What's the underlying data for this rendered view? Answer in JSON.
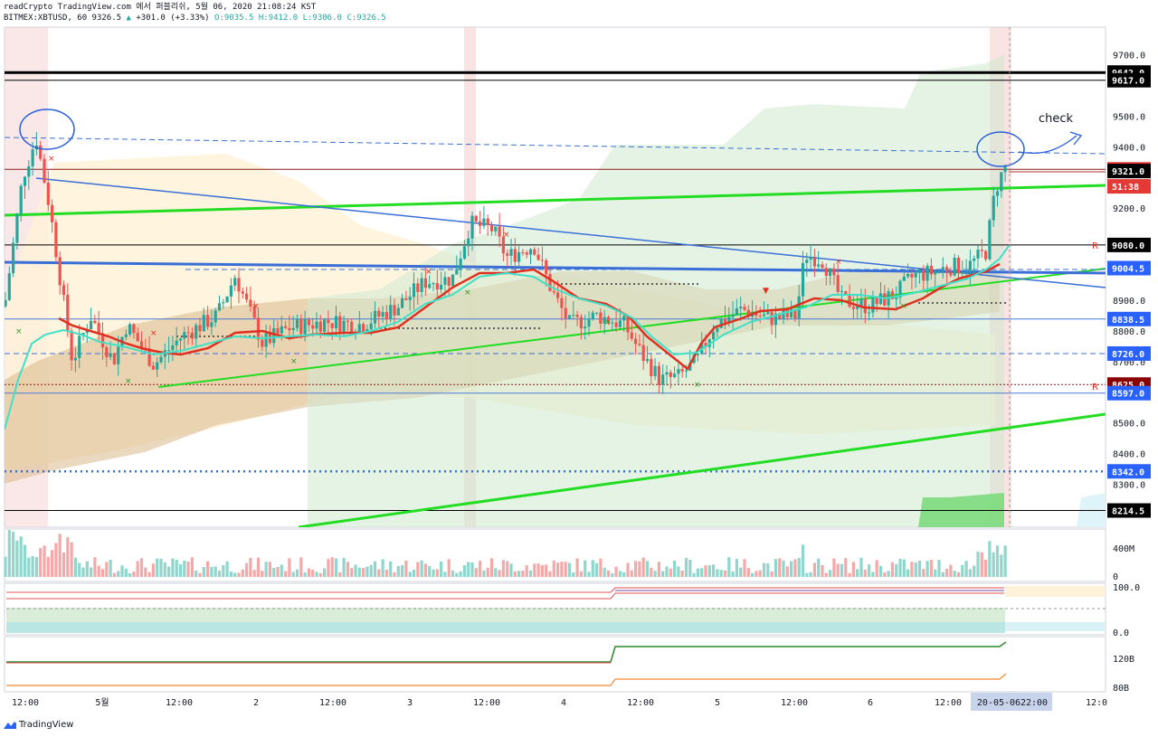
{
  "header": {
    "line1": "readCrypto TradingView.com 에서 퍼블리쉬, 5월 06, 2020 21:08:24 KST",
    "symbol": "BITMEX:XBTUSD, 60",
    "last": "9326.5",
    "change": "+301.0 (+3.33%)",
    "open": "O:9035.5",
    "high": "H:9412.0",
    "low": "L:9306.0",
    "close": "C:9326.5"
  },
  "annotation": "check",
  "branding": "TradingView",
  "colors": {
    "up": "#26a69a",
    "down": "#ef5350",
    "green_line": "#22dd22",
    "blue_line": "#3a6fd8",
    "red_ma": "#e03020",
    "cyan_ma": "#40e0c8"
  },
  "chart_data": {
    "type": "candlestick",
    "symbol": "BITMEX:XBTUSD",
    "interval": "60",
    "ylim": [
      8160,
      9790
    ],
    "y_ticks": [
      "9700.0",
      "9500.0",
      "9400.0",
      "9200.0",
      "8900.0",
      "8800.0",
      "8700.0",
      "8500.0",
      "8400.0",
      "8300.0"
    ],
    "x_ticks": [
      "12:00",
      "5월",
      "12:00",
      "2",
      "12:00",
      "3",
      "12:00",
      "4",
      "12:00",
      "5",
      "12:00",
      "6",
      "12:00",
      "20-05-06",
      "22:00",
      "12:0"
    ],
    "price_labels": [
      {
        "value": 9642.0,
        "text": "9642.0",
        "style": "black"
      },
      {
        "value": 9617.0,
        "text": "9617.0",
        "style": "black"
      },
      {
        "value": 9326.5,
        "text": "9326.5",
        "style": "red"
      },
      {
        "value": 9271.0,
        "text": "51:38",
        "style": "red"
      },
      {
        "value": 9321.0,
        "text": "9321.0",
        "style": "black"
      },
      {
        "value": 9080.0,
        "text": "9080.0",
        "style": "black"
      },
      {
        "value": 9004.5,
        "text": "9004.5",
        "style": "blue"
      },
      {
        "value": 8838.5,
        "text": "8838.5",
        "style": "blue"
      },
      {
        "value": 8726.0,
        "text": "8726.0",
        "style": "blue"
      },
      {
        "value": 8625.0,
        "text": "8625.0",
        "style": "darkred"
      },
      {
        "value": 8597.0,
        "text": "8597.0",
        "style": "blue"
      },
      {
        "value": 8342.0,
        "text": "8342.0",
        "style": "blue"
      },
      {
        "value": 8214.5,
        "text": "8214.5",
        "style": "black"
      }
    ],
    "horizontal_lines": [
      {
        "value": 9642.0,
        "style": "solid-black-thick"
      },
      {
        "value": 9617.0,
        "style": "solid-black"
      },
      {
        "value": 9326.5,
        "style": "solid-darkred"
      },
      {
        "value": 9080.0,
        "style": "solid-black"
      },
      {
        "value": 8838.5,
        "style": "solid-blue"
      },
      {
        "value": 8726.0,
        "style": "dashed-blue"
      },
      {
        "value": 8625.0,
        "style": "dotted-darkred"
      },
      {
        "value": 8597.0,
        "style": "solid-blue"
      },
      {
        "value": 8342.0,
        "style": "dotted-blue"
      },
      {
        "value": 8214.5,
        "style": "solid-black"
      }
    ],
    "volume_ticks": [
      "400M",
      "0"
    ],
    "osc1_ticks": [
      "100.0",
      "0.0"
    ],
    "osc2_ticks": [
      "120B",
      "80B"
    ],
    "ohlc_last": {
      "open": 9035.5,
      "high": 9412.0,
      "low": 9306.0,
      "close": 9326.5,
      "change": 301.0,
      "change_pct": 3.33
    }
  }
}
